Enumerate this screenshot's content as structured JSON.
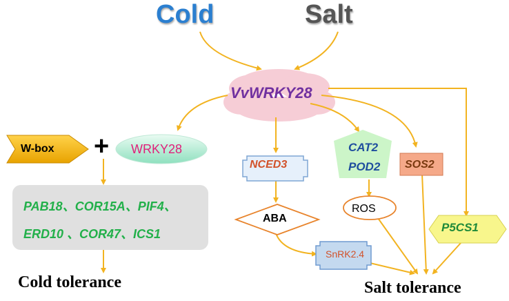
{
  "inputs": {
    "cold": "Cold",
    "salt": "Salt"
  },
  "center": {
    "label": "VvWRKY28"
  },
  "cold_branch": {
    "wbox": "W-box",
    "plus": "+",
    "wrky28": "WRKY28",
    "genes_line1": "PAB18、COR15A、PIF4、",
    "genes_line2": "ERD10 、COR47、ICS1",
    "tolerance": "Cold tolerance"
  },
  "salt_branch": {
    "nced3": "NCED3",
    "aba": "ABA",
    "snrk": "SnRK2.4",
    "cat2": "CAT2",
    "pod2": "POD2",
    "ros": "ROS",
    "sos2": "SOS2",
    "p5cs1": "P5CS1",
    "tolerance": "Salt tolerance"
  },
  "colors": {
    "arrow": "#f2b320",
    "cloud": "#f6cdd6",
    "wbox_arrow": "#f5b800",
    "gene_box": "#e0e0e0",
    "cold": "#2b7fd0",
    "salt": "#555555"
  }
}
